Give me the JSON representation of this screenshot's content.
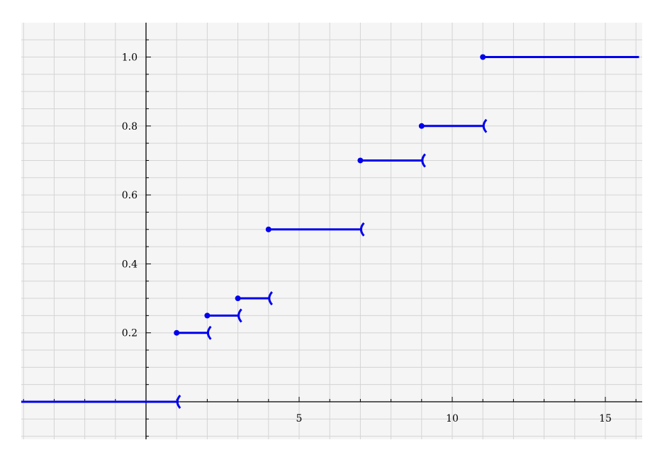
{
  "chart_data": {
    "type": "line",
    "subtype": "step-function",
    "title": "",
    "xlabel": "",
    "ylabel": "",
    "xlim": [
      -4.1,
      16.1
    ],
    "ylim": [
      -0.12,
      1.1
    ],
    "grid": true,
    "legend": "none",
    "x_ticks": [
      5,
      10,
      15
    ],
    "x_tick_labels": [
      "5",
      "10",
      "15"
    ],
    "y_ticks": [
      0.2,
      0.4,
      0.6,
      0.8,
      1.0
    ],
    "y_tick_labels": [
      "0.2",
      "0.4",
      "0.6",
      "0.8",
      "1.0"
    ],
    "series": [
      {
        "segments": [
          {
            "x0": -4.1,
            "x1": 1,
            "y": 0,
            "closed_start": false,
            "open_end": true
          },
          {
            "x0": 1,
            "x1": 2,
            "y": 0.2,
            "closed_start": true,
            "open_end": true
          },
          {
            "x0": 2,
            "x1": 3,
            "y": 0.25,
            "closed_start": true,
            "open_end": true
          },
          {
            "x0": 3,
            "x1": 4,
            "y": 0.3,
            "closed_start": true,
            "open_end": true
          },
          {
            "x0": 4,
            "x1": 7,
            "y": 0.5,
            "closed_start": true,
            "open_end": true
          },
          {
            "x0": 7,
            "x1": 9,
            "y": 0.7,
            "closed_start": true,
            "open_end": true
          },
          {
            "x0": 9,
            "x1": 11,
            "y": 0.8,
            "closed_start": true,
            "open_end": true
          },
          {
            "x0": 11,
            "x1": 16.1,
            "y": 1.0,
            "closed_start": true,
            "open_end": false
          }
        ]
      }
    ],
    "colors": {
      "background": "#f5f5f5",
      "grid": "#d4d4d4",
      "axis": "#000000",
      "series": "#0000ee",
      "text": "#000000"
    }
  }
}
